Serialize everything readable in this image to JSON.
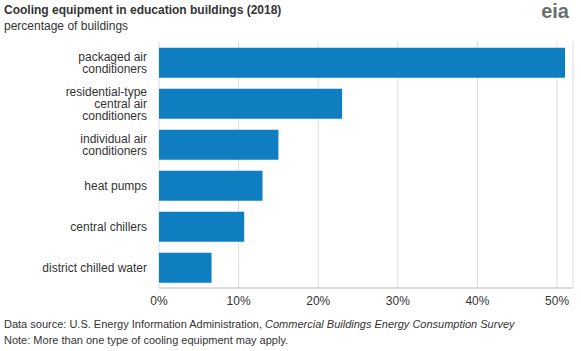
{
  "chart_data": {
    "type": "bar",
    "orientation": "horizontal",
    "title": "Cooling equipment in education buildings (2018)",
    "subtitle": "percentage of buildings",
    "categories": [
      "packaged air conditioners",
      "residential-type central air conditioners",
      "individual air conditioners",
      "heat pumps",
      "central chillers",
      "district chilled water"
    ],
    "values": [
      51,
      23,
      15,
      13,
      10.7,
      6.6
    ],
    "color": "#0f7ec1",
    "xlim": [
      0,
      52
    ],
    "xticks": [
      {
        "value": 0,
        "label": "0%"
      },
      {
        "value": 10,
        "label": "10%"
      },
      {
        "value": 20,
        "label": "20%"
      },
      {
        "value": 30,
        "label": "30%"
      },
      {
        "value": 40,
        "label": "40%"
      },
      {
        "value": 50,
        "label": "50%"
      }
    ],
    "grid": true,
    "source": [
      "Data source: U.S. Energy Information Administration, ",
      "Commercial Buildings Energy Consumption Survey"
    ],
    "note": "Note: More than one type of cooling equipment may apply.",
    "logo": "eia"
  }
}
